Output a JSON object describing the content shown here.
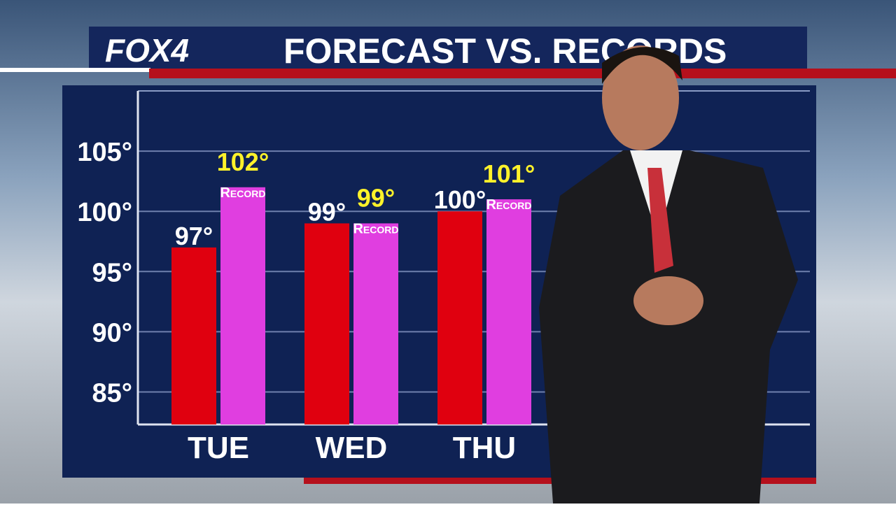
{
  "logo": "FOX4",
  "chart_data": {
    "type": "bar",
    "title": "FORECAST VS. RECORDS",
    "categories": [
      "TUE",
      "WED",
      "THU"
    ],
    "series": [
      {
        "color": "#e0000f",
        "values": [
          97,
          99,
          100
        ],
        "value_labels": [
          "97°",
          "99°",
          "100°"
        ]
      },
      {
        "color": "#e03ee0",
        "values": [
          102,
          99,
          101
        ],
        "value_labels": [
          "102°",
          "99°",
          "101°"
        ],
        "label": "Record"
      }
    ],
    "ylim": [
      82.3,
      110
    ],
    "yticks": [
      {
        "value": 85,
        "label": "85°"
      },
      {
        "value": 90,
        "label": "90°"
      },
      {
        "value": 95,
        "label": "95°"
      },
      {
        "value": 100,
        "label": "100°"
      },
      {
        "value": 105,
        "label": "105°"
      }
    ],
    "grid": true
  }
}
